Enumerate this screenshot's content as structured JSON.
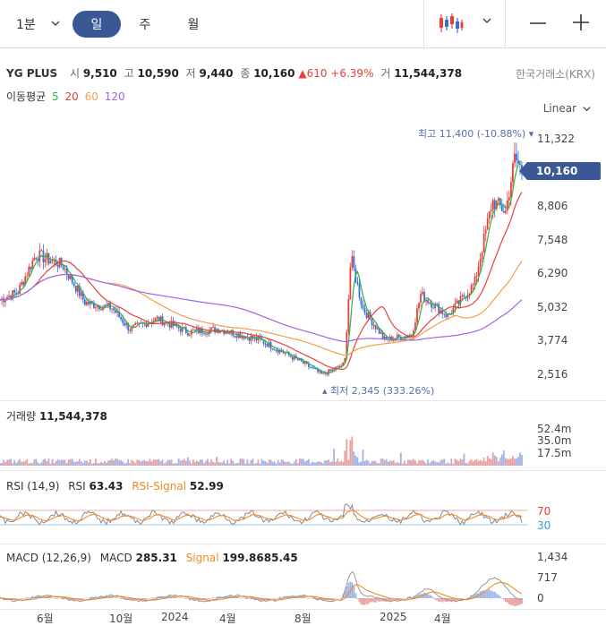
{
  "toolbar": {
    "interval_label": "1분",
    "periods": [
      "일",
      "주",
      "월"
    ],
    "active_period": "일"
  },
  "quote": {
    "symbol": "YG PLUS",
    "open_label": "시",
    "open": "9,510",
    "high_label": "고",
    "high": "10,590",
    "low_label": "저",
    "low": "9,440",
    "close_label": "종",
    "close": "10,160",
    "change": "610",
    "change_pct": "+6.39%",
    "volume_label": "거",
    "volume": "11,544,378",
    "exchange": "한국거래소(KRX)"
  },
  "ma": {
    "label": "이동평균",
    "periods": [
      "5",
      "20",
      "60",
      "120"
    ],
    "colors": [
      "#2bb24c",
      "#e8413a",
      "#f0a04b",
      "#a066e0"
    ]
  },
  "scale_mode": "Linear",
  "price_axis": [
    "11,322",
    "8,806",
    "7,548",
    "6,290",
    "5,032",
    "3,774",
    "2,516"
  ],
  "last_price_tag": "10,160",
  "annotations": {
    "high": "최고 11,400 (-10.88%)",
    "low": "최저 2,345 (333.26%)"
  },
  "volume_pane": {
    "label": "거래량",
    "value": "11,544,378",
    "axis": [
      "52.4m",
      "35.0m",
      "17.5m"
    ]
  },
  "rsi_pane": {
    "params": "RSI (14,9)",
    "rsi_label": "RSI",
    "rsi_value": "63.43",
    "signal_label": "RSI-Signal",
    "signal_value": "52.99",
    "levels": [
      "70",
      "30"
    ]
  },
  "macd_pane": {
    "params": "MACD (12,26,9)",
    "macd_label": "MACD",
    "macd_value": "285.31",
    "signal_label": "Signal",
    "signal_value": "199.8685.45",
    "axis": [
      "1,434",
      "717",
      "0"
    ]
  },
  "x_axis": [
    "6월",
    "10월",
    "2024",
    "4월",
    "8월",
    "2025",
    "4월"
  ],
  "colors": {
    "up": "#e8413a",
    "down": "#3a6fd8",
    "accent": "#3a5796",
    "rsi": "#888888",
    "rsi_signal": "#f08a24",
    "macd": "#999999",
    "macd_signal": "#f08a24"
  }
}
